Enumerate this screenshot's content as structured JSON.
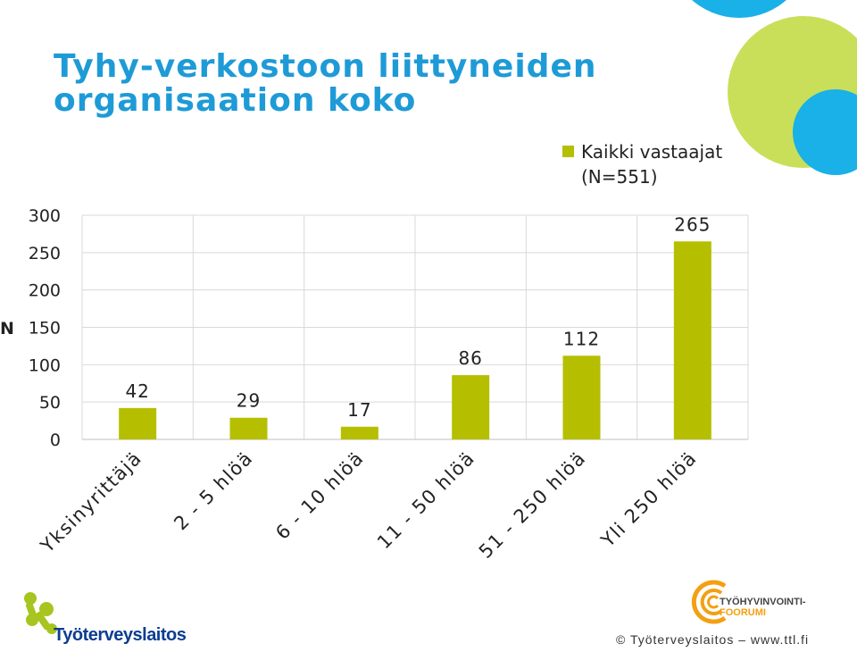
{
  "slide": {
    "title_line1": "Tyhy-verkostoon liittyneiden",
    "title_line2": "organisaation koko"
  },
  "colors": {
    "title": "#1e9bd7",
    "bar": "#b5bf00",
    "grid": "#d9d9d9",
    "deco_blue": "#1ab0e8",
    "deco_green": "#c9df5a"
  },
  "legend": {
    "line1": "Kaikki vastaajat",
    "line2": "(N=551)"
  },
  "chart_data": {
    "type": "bar",
    "categories": [
      "Yksinyrittäjä",
      "2 - 5 hlöä",
      "6 - 10 hlöä",
      "11 - 50 hlöä",
      "51 - 250 hlöä",
      "Yli 250 hlöä"
    ],
    "series": [
      {
        "name": "Kaikki vastaajat (N=551)",
        "values": [
          42,
          29,
          17,
          86,
          112,
          265
        ]
      }
    ],
    "ylabel": "N",
    "ylim": [
      0,
      300
    ],
    "yticks": [
      0,
      50,
      100,
      150,
      200,
      250,
      300
    ],
    "grid": true,
    "legend_position": "top-right"
  },
  "footer": {
    "brand": "Työterveyslaitos",
    "forum_line1": "TYÖHYVINVOINTI-",
    "forum_line2": "FOORUMI",
    "copyright": "© Työterveyslaitos  –  www.ttl.fi"
  }
}
